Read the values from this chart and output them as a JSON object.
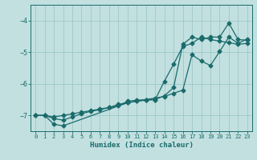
{
  "xlabel": "Humidex (Indice chaleur)",
  "background_color": "#c2e0e0",
  "grid_color": "#9fc8c8",
  "line_color": "#1a6b6b",
  "xlim": [
    -0.5,
    23.5
  ],
  "ylim": [
    -7.5,
    -3.5
  ],
  "yticks": [
    -7,
    -6,
    -5,
    -4
  ],
  "xticks": [
    0,
    1,
    2,
    3,
    4,
    5,
    6,
    7,
    8,
    9,
    10,
    11,
    12,
    13,
    14,
    15,
    16,
    17,
    18,
    19,
    20,
    21,
    22,
    23
  ],
  "line1_x": [
    0,
    1,
    2,
    3,
    4,
    5,
    6,
    7,
    8,
    9,
    10,
    11,
    12,
    13,
    14,
    15,
    16,
    17,
    18,
    19,
    20,
    21,
    22,
    23
  ],
  "line1_y": [
    -7.0,
    -7.0,
    -7.1,
    -7.15,
    -7.05,
    -6.95,
    -6.87,
    -6.82,
    -6.75,
    -6.7,
    -6.55,
    -6.52,
    -6.5,
    -6.5,
    -6.38,
    -6.12,
    -4.75,
    -4.52,
    -4.6,
    -4.52,
    -4.52,
    -4.08,
    -4.6,
    -4.62
  ],
  "line2_x": [
    0,
    1,
    2,
    3,
    10,
    11,
    12,
    13,
    14,
    15,
    16,
    17,
    18,
    19,
    20,
    21,
    22,
    23
  ],
  "line2_y": [
    -7.0,
    -7.0,
    -7.28,
    -7.33,
    -6.6,
    -6.55,
    -6.52,
    -6.5,
    -5.92,
    -5.38,
    -4.82,
    -4.72,
    -4.52,
    -4.6,
    -4.65,
    -4.7,
    -4.75,
    -4.72
  ],
  "line3_x": [
    0,
    1,
    2,
    3,
    4,
    5,
    6,
    7,
    8,
    9,
    10,
    11,
    12,
    13,
    14,
    15,
    16,
    17,
    18,
    19,
    20,
    21,
    22,
    23
  ],
  "line3_y": [
    -7.0,
    -7.0,
    -7.05,
    -7.0,
    -6.95,
    -6.9,
    -6.85,
    -6.8,
    -6.75,
    -6.65,
    -6.6,
    -6.55,
    -6.5,
    -6.45,
    -6.4,
    -6.3,
    -6.2,
    -5.08,
    -5.28,
    -5.42,
    -4.98,
    -4.52,
    -4.72,
    -4.58
  ]
}
